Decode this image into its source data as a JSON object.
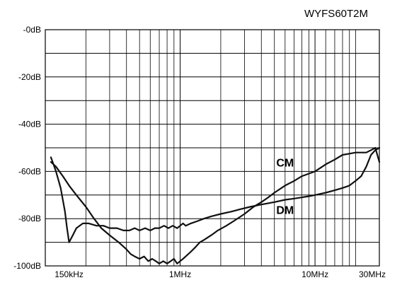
{
  "chart_data": {
    "type": "line",
    "title": "WYFS60T2M",
    "xlabel": "",
    "ylabel": "",
    "x_scale": "log",
    "xlim_hz": [
      150000,
      30000000
    ],
    "ylim_db": [
      -100,
      0
    ],
    "y_ticks": [
      {
        "value": 0,
        "label": "-0dB"
      },
      {
        "value": -20,
        "label": "-20dB"
      },
      {
        "value": -40,
        "label": "-40dB"
      },
      {
        "value": -60,
        "label": "-60dB"
      },
      {
        "value": -80,
        "label": "-80dB"
      },
      {
        "value": -100,
        "label": "-100dB"
      }
    ],
    "x_ticks": [
      {
        "value": 150000,
        "label": "150kHz"
      },
      {
        "value": 1000000,
        "label": "1MHz"
      },
      {
        "value": 10000000,
        "label": "10MHz"
      },
      {
        "value": 30000000,
        "label": "30MHz"
      }
    ],
    "grid": true,
    "series": [
      {
        "name": "CM",
        "x": [
          110000,
          115000,
          120000,
          130000,
          140000,
          145000,
          150000,
          160000,
          170000,
          190000,
          210000,
          240000,
          270000,
          300000,
          340000,
          380000,
          420000,
          460000,
          500000,
          550000,
          600000,
          650000,
          700000,
          760000,
          820000,
          880000,
          950000,
          1000000,
          1050000,
          1100000,
          1200000,
          1350000,
          1500000,
          1700000,
          2000000,
          2400000,
          2800000,
          3300000,
          4000000,
          5000000,
          6000000,
          7000000,
          8000000,
          9000000,
          10000000,
          12000000,
          14000000,
          16000000,
          18000000,
          20000000,
          22000000,
          24000000,
          26000000,
          28000000,
          30000000
        ],
        "values": [
          -54,
          -57,
          -60,
          -67,
          -77,
          -84,
          -90,
          -87,
          -84,
          -82,
          -82,
          -83,
          -83,
          -84,
          -84,
          -85,
          -85,
          -84,
          -85,
          -84,
          -85,
          -84,
          -84,
          -83,
          -84,
          -83,
          -84,
          -83,
          -82,
          -83,
          -82,
          -81,
          -80,
          -79,
          -78,
          -77,
          -76,
          -75,
          -74,
          -73,
          -72,
          -71.5,
          -71,
          -70.5,
          -70,
          -69,
          -68,
          -67,
          -66,
          -64,
          -62,
          -58,
          -53,
          -51,
          -50
        ]
      },
      {
        "name": "DM",
        "x": [
          110000,
          120000,
          135000,
          150000,
          170000,
          200000,
          230000,
          260000,
          300000,
          350000,
          400000,
          430000,
          460000,
          500000,
          540000,
          580000,
          620000,
          660000,
          700000,
          750000,
          800000,
          850000,
          900000,
          950000,
          1000000,
          1050000,
          1100000,
          1200000,
          1300000,
          1400000,
          1500000,
          1700000,
          1900000,
          2200000,
          2500000,
          3000000,
          3500000,
          4000000,
          4500000,
          5000000,
          6000000,
          7000000,
          8000000,
          10000000,
          12000000,
          14000000,
          16000000,
          18000000,
          20000000,
          22000000,
          24000000,
          26000000,
          28000000,
          30000000
        ],
        "values": [
          -56,
          -58,
          -62,
          -66,
          -70,
          -75,
          -80,
          -84,
          -87,
          -90,
          -93,
          -95,
          -96,
          -97,
          -96,
          -98,
          -97,
          -98,
          -99,
          -98,
          -99,
          -98,
          -97,
          -99,
          -98,
          -97,
          -96,
          -94,
          -92,
          -90,
          -89,
          -87,
          -85,
          -83,
          -81,
          -78,
          -75,
          -73,
          -71,
          -69,
          -66,
          -64,
          -62,
          -60,
          -57,
          -55,
          -53,
          -52.5,
          -52,
          -52,
          -52,
          -51,
          -50,
          -56
        ]
      }
    ],
    "annotations": [
      {
        "text": "CM",
        "x": 6000000,
        "y": -58
      },
      {
        "text": "DM",
        "x": 6000000,
        "y": -78
      }
    ]
  }
}
